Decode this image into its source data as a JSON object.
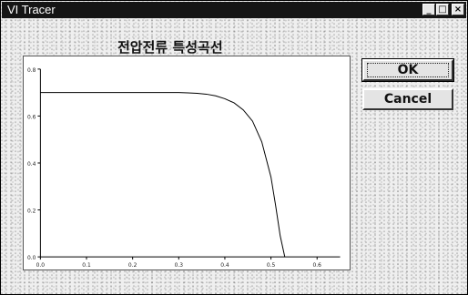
{
  "window": {
    "title": "VI Tracer",
    "controls": {
      "minimize": "_",
      "maximize": "□",
      "close": "×"
    }
  },
  "buttons": {
    "ok": "OK",
    "cancel": "Cancel"
  },
  "chart_data": {
    "type": "line",
    "title": "전압전류 특성곡선",
    "xlabel": "",
    "ylabel": "",
    "xlim": [
      0,
      0.65
    ],
    "ylim": [
      0,
      0.8
    ],
    "x_ticks": [
      "0.0",
      "0.1",
      "0.2",
      "0.3",
      "0.4",
      "0.5",
      "0.6"
    ],
    "y_ticks": [
      "0.0",
      "0.2",
      "0.4",
      "0.6",
      "0.8"
    ],
    "grid": false,
    "series": [
      {
        "x": [
          0.0,
          0.1,
          0.2,
          0.3,
          0.32,
          0.34,
          0.36,
          0.38,
          0.4,
          0.42,
          0.44,
          0.46,
          0.48,
          0.5,
          0.51,
          0.52,
          0.53
        ],
        "y": [
          0.7,
          0.7,
          0.7,
          0.7,
          0.699,
          0.697,
          0.693,
          0.686,
          0.674,
          0.656,
          0.626,
          0.578,
          0.49,
          0.34,
          0.22,
          0.09,
          0.0
        ],
        "color": "#000000"
      }
    ]
  }
}
